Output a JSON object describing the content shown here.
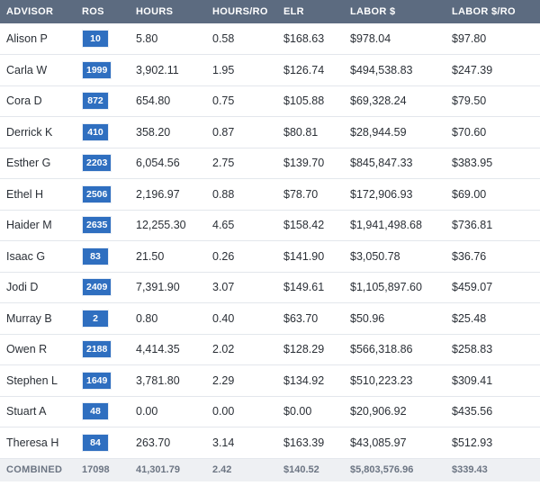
{
  "columns": [
    "ADVISOR",
    "ROS",
    "HOURS",
    "HOURS/RO",
    "ELR",
    "LABOR $",
    "LABOR $/RO"
  ],
  "rows": [
    {
      "advisor": "Alison P",
      "ros": "10",
      "hours": "5.80",
      "hours_ro": "0.58",
      "elr": "$168.63",
      "labor": "$978.04",
      "labor_ro": "$97.80"
    },
    {
      "advisor": "Carla W",
      "ros": "1999",
      "hours": "3,902.11",
      "hours_ro": "1.95",
      "elr": "$126.74",
      "labor": "$494,538.83",
      "labor_ro": "$247.39"
    },
    {
      "advisor": "Cora D",
      "ros": "872",
      "hours": "654.80",
      "hours_ro": "0.75",
      "elr": "$105.88",
      "labor": "$69,328.24",
      "labor_ro": "$79.50"
    },
    {
      "advisor": "Derrick K",
      "ros": "410",
      "hours": "358.20",
      "hours_ro": "0.87",
      "elr": "$80.81",
      "labor": "$28,944.59",
      "labor_ro": "$70.60"
    },
    {
      "advisor": "Esther G",
      "ros": "2203",
      "hours": "6,054.56",
      "hours_ro": "2.75",
      "elr": "$139.70",
      "labor": "$845,847.33",
      "labor_ro": "$383.95"
    },
    {
      "advisor": "Ethel H",
      "ros": "2506",
      "hours": "2,196.97",
      "hours_ro": "0.88",
      "elr": "$78.70",
      "labor": "$172,906.93",
      "labor_ro": "$69.00"
    },
    {
      "advisor": "Haider M",
      "ros": "2635",
      "hours": "12,255.30",
      "hours_ro": "4.65",
      "elr": "$158.42",
      "labor": "$1,941,498.68",
      "labor_ro": "$736.81"
    },
    {
      "advisor": "Isaac G",
      "ros": "83",
      "hours": "21.50",
      "hours_ro": "0.26",
      "elr": "$141.90",
      "labor": "$3,050.78",
      "labor_ro": "$36.76"
    },
    {
      "advisor": "Jodi D",
      "ros": "2409",
      "hours": "7,391.90",
      "hours_ro": "3.07",
      "elr": "$149.61",
      "labor": "$1,105,897.60",
      "labor_ro": "$459.07"
    },
    {
      "advisor": "Murray B",
      "ros": "2",
      "hours": "0.80",
      "hours_ro": "0.40",
      "elr": "$63.70",
      "labor": "$50.96",
      "labor_ro": "$25.48"
    },
    {
      "advisor": "Owen R",
      "ros": "2188",
      "hours": "4,414.35",
      "hours_ro": "2.02",
      "elr": "$128.29",
      "labor": "$566,318.86",
      "labor_ro": "$258.83"
    },
    {
      "advisor": "Stephen L",
      "ros": "1649",
      "hours": "3,781.80",
      "hours_ro": "2.29",
      "elr": "$134.92",
      "labor": "$510,223.23",
      "labor_ro": "$309.41"
    },
    {
      "advisor": "Stuart A",
      "ros": "48",
      "hours": "0.00",
      "hours_ro": "0.00",
      "elr": "$0.00",
      "labor": "$20,906.92",
      "labor_ro": "$435.56"
    },
    {
      "advisor": "Theresa H",
      "ros": "84",
      "hours": "263.70",
      "hours_ro": "3.14",
      "elr": "$163.39",
      "labor": "$43,085.97",
      "labor_ro": "$512.93"
    }
  ],
  "footer": {
    "advisor": "COMBINED",
    "ros": "17098",
    "hours": "41,301.79",
    "hours_ro": "2.42",
    "elr": "$140.52",
    "labor": "$5,803,576.96",
    "labor_ro": "$339.43"
  },
  "colors": {
    "header_bg": "#5c6b80",
    "badge_bg": "#2f6fc0",
    "footer_bg": "#eef0f3"
  }
}
